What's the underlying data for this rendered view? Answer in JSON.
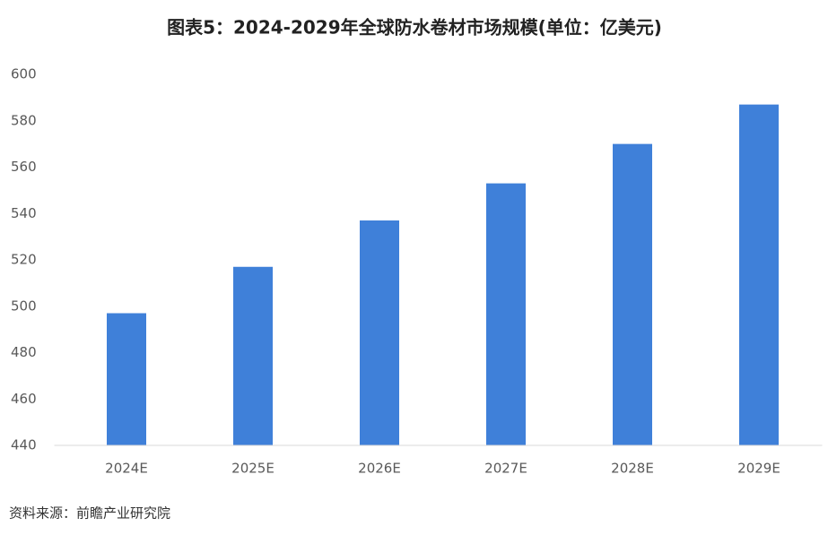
{
  "chart_data": {
    "type": "bar",
    "title": "图表5：2024-2029年全球防水卷材市场规模(单位：亿美元)",
    "categories": [
      "2024E",
      "2025E",
      "2026E",
      "2027E",
      "2028E",
      "2029E"
    ],
    "values": [
      497,
      517,
      537,
      553,
      570,
      587
    ],
    "color": "#3f80d9",
    "ylim": [
      440,
      600
    ],
    "yticks": [
      440,
      460,
      480,
      500,
      520,
      540,
      560,
      580,
      600
    ],
    "grid": false,
    "source": "资料来源：前瞻产业研究院"
  }
}
